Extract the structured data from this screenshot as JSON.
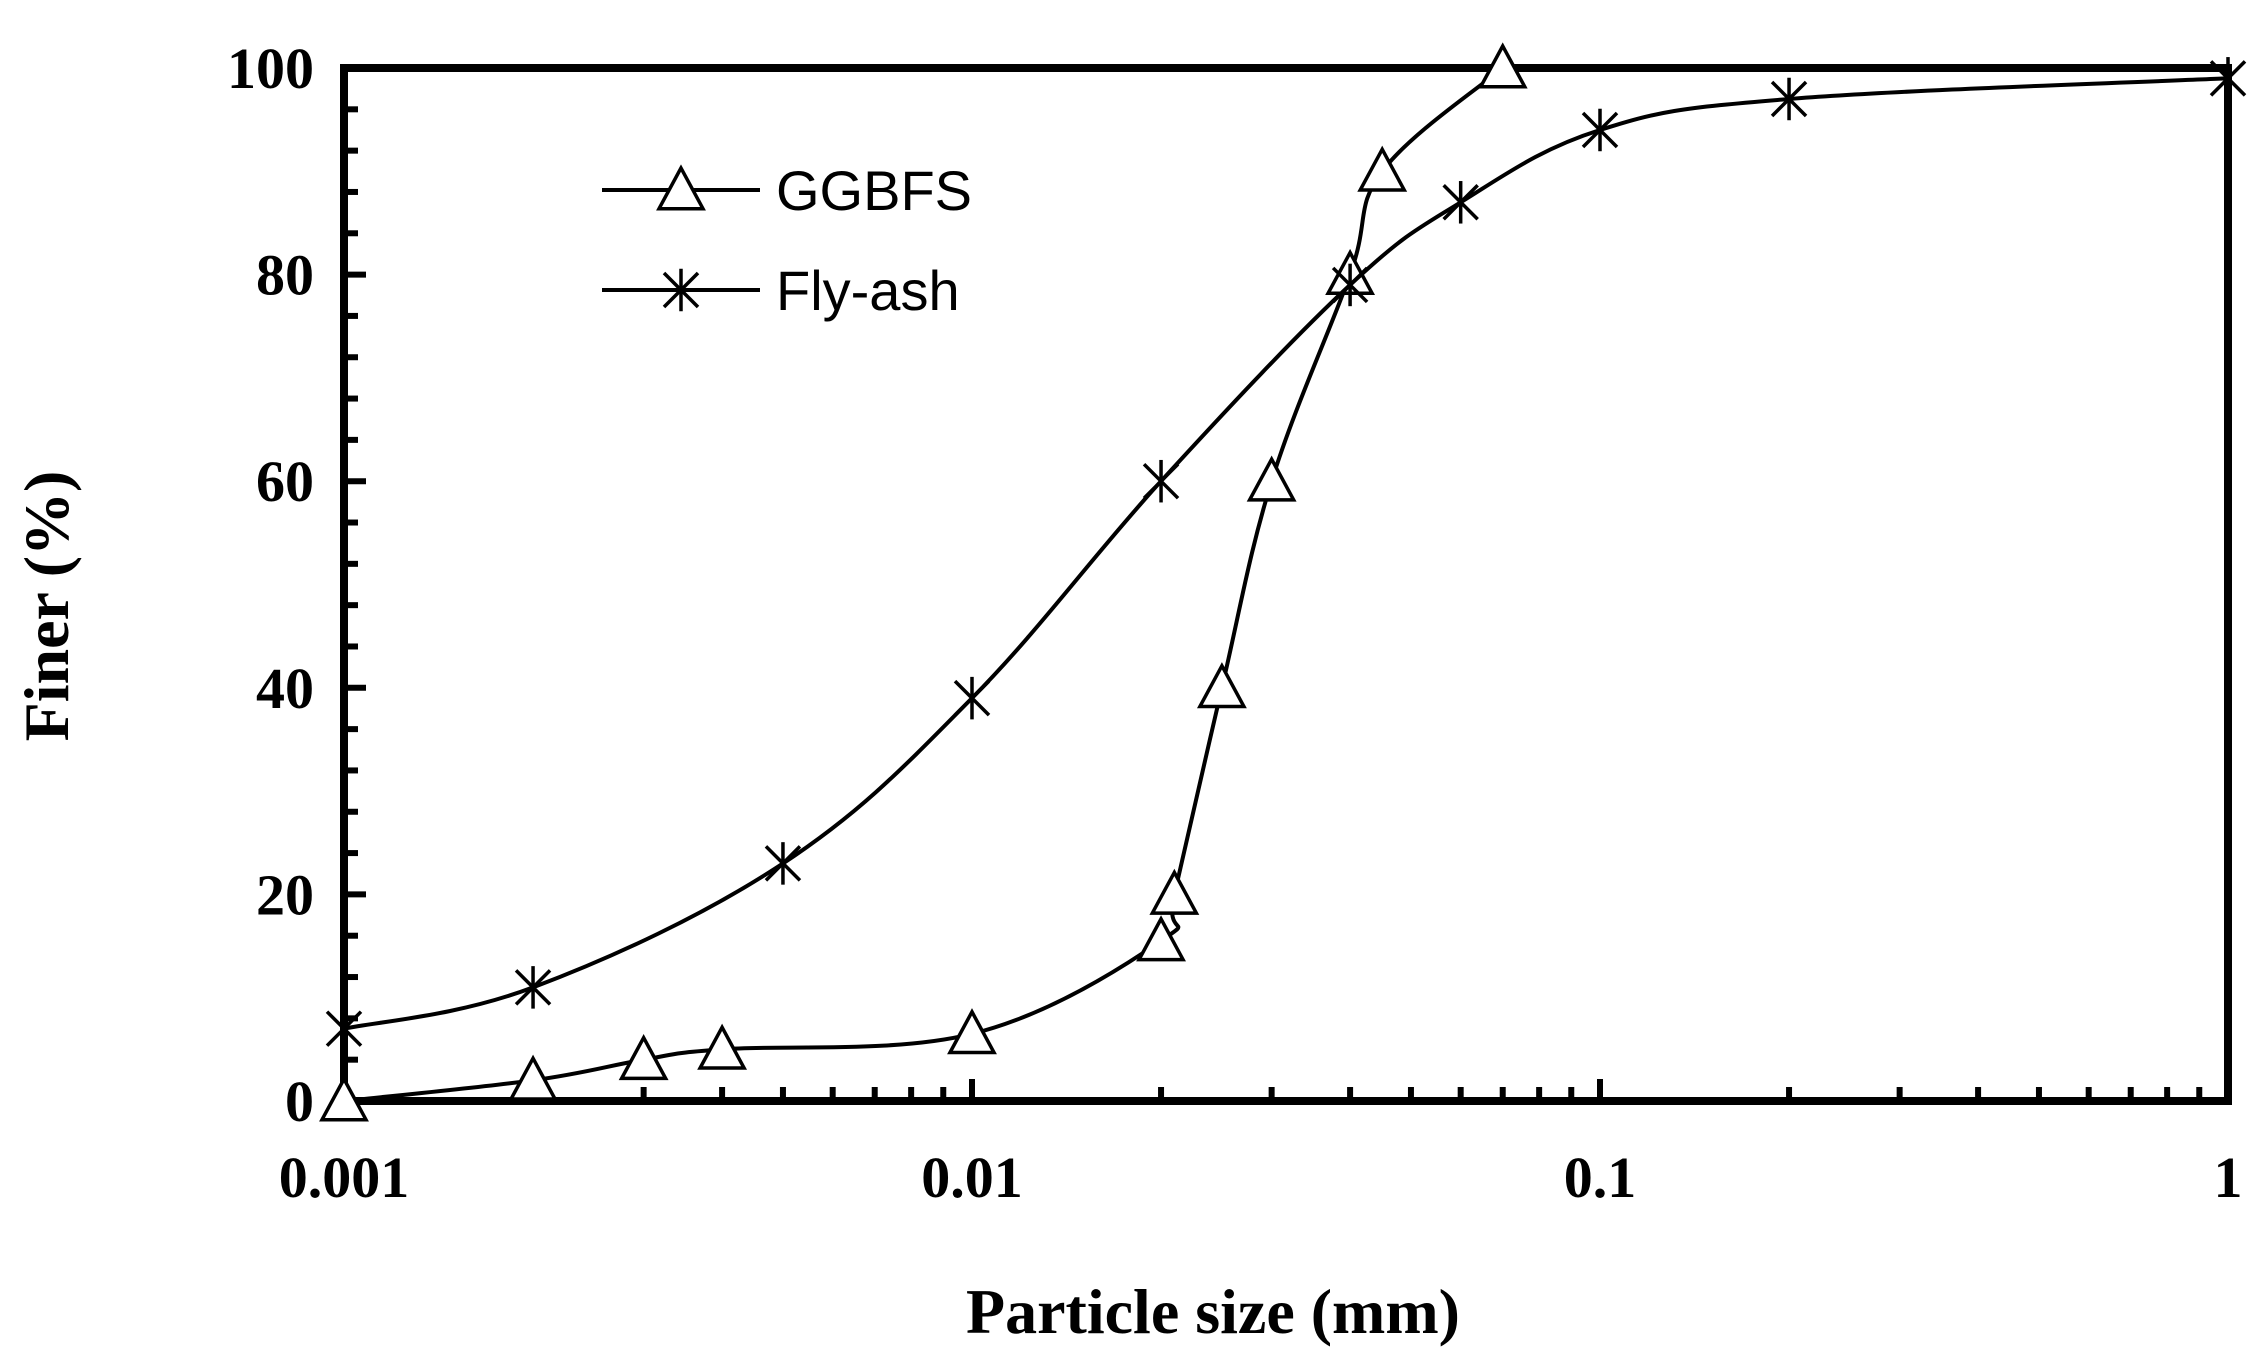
{
  "chart_data": {
    "type": "line",
    "x_scale": "log",
    "xlabel": "Particle size (mm)",
    "ylabel": "Finer (%)",
    "xlim": [
      0.001,
      1
    ],
    "ylim": [
      0,
      100
    ],
    "x_ticks": [
      0.001,
      0.01,
      0.1,
      1
    ],
    "x_tick_labels": [
      "0.001",
      "0.01",
      "0.1",
      "1"
    ],
    "y_ticks": [
      0,
      20,
      40,
      60,
      80,
      100
    ],
    "y_tick_labels": [
      "0",
      "20",
      "40",
      "60",
      "80",
      "100"
    ],
    "grid": false,
    "legend_position": "top-left",
    "series": [
      {
        "name": "GGBFS",
        "marker": "triangle",
        "color": "#000000",
        "x": [
          0.001,
          0.002,
          0.003,
          0.004,
          0.01,
          0.02,
          0.021,
          0.025,
          0.03,
          0.04,
          0.045,
          0.07
        ],
        "y": [
          0,
          2,
          4,
          5,
          6.5,
          15.5,
          20,
          40,
          60,
          80,
          90,
          100
        ]
      },
      {
        "name": "Fly-ash",
        "marker": "asterisk",
        "color": "#000000",
        "x": [
          0.001,
          0.002,
          0.005,
          0.01,
          0.02,
          0.04,
          0.06,
          0.1,
          0.2,
          1
        ],
        "y": [
          7,
          11,
          23,
          39,
          60,
          79,
          87,
          94,
          97,
          99
        ]
      }
    ]
  }
}
